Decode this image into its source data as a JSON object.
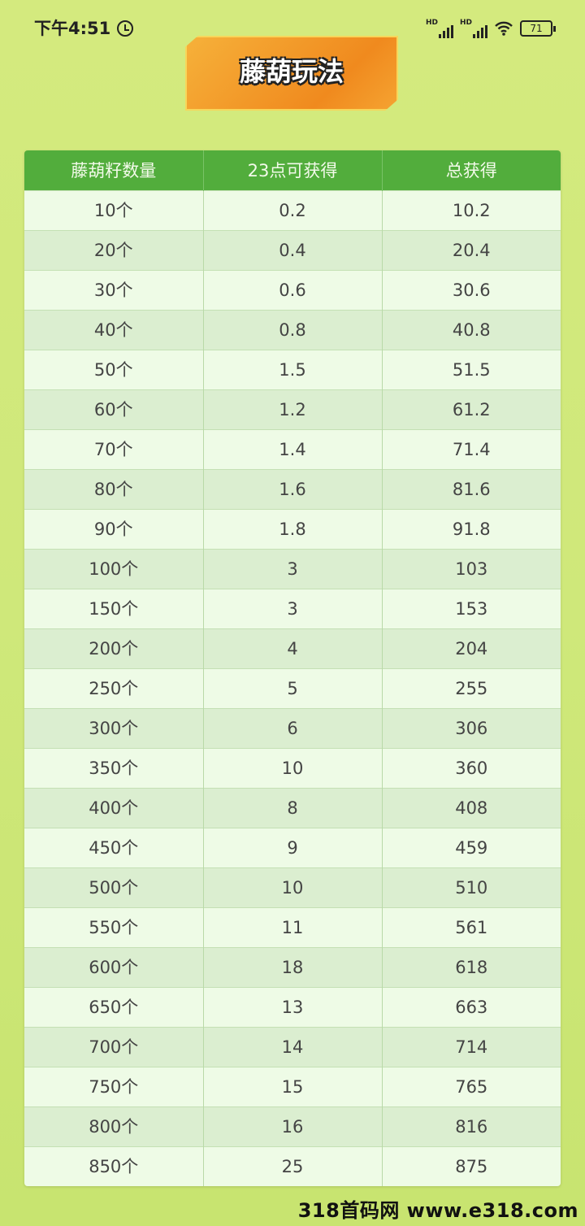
{
  "status_bar": {
    "time": "下午4:51",
    "signal1": "HD",
    "signal2": "HD",
    "battery": "71"
  },
  "title": "藤葫玩法",
  "table": {
    "headers": [
      "藤葫籽数量",
      "23点可获得",
      "总获得"
    ],
    "rows": [
      [
        "10个",
        "0.2",
        "10.2"
      ],
      [
        "20个",
        "0.4",
        "20.4"
      ],
      [
        "30个",
        "0.6",
        "30.6"
      ],
      [
        "40个",
        "0.8",
        "40.8"
      ],
      [
        "50个",
        "1.5",
        "51.5"
      ],
      [
        "60个",
        "1.2",
        "61.2"
      ],
      [
        "70个",
        "1.4",
        "71.4"
      ],
      [
        "80个",
        "1.6",
        "81.6"
      ],
      [
        "90个",
        "1.8",
        "91.8"
      ],
      [
        "100个",
        "3",
        "103"
      ],
      [
        "150个",
        "3",
        "153"
      ],
      [
        "200个",
        "4",
        "204"
      ],
      [
        "250个",
        "5",
        "255"
      ],
      [
        "300个",
        "6",
        "306"
      ],
      [
        "350个",
        "10",
        "360"
      ],
      [
        "400个",
        "8",
        "408"
      ],
      [
        "450个",
        "9",
        "459"
      ],
      [
        "500个",
        "10",
        "510"
      ],
      [
        "550个",
        "11",
        "561"
      ],
      [
        "600个",
        "18",
        "618"
      ],
      [
        "650个",
        "13",
        "663"
      ],
      [
        "700个",
        "14",
        "714"
      ],
      [
        "750个",
        "15",
        "765"
      ],
      [
        "800个",
        "16",
        "816"
      ],
      [
        "850个",
        "25",
        "875"
      ]
    ]
  },
  "watermark": "318首码网 www.e318.com",
  "colors": {
    "header": "#52ad3c",
    "background": "#d4ea7e",
    "banner": "#f08a1e"
  }
}
